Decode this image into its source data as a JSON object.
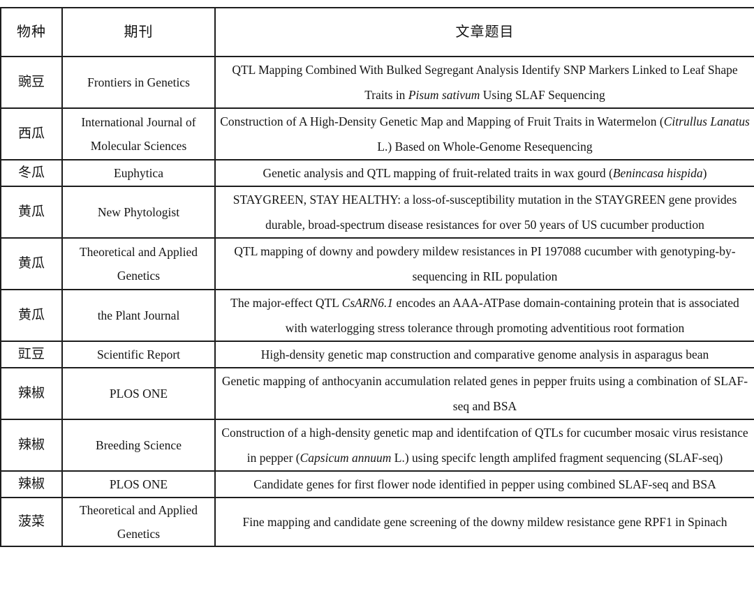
{
  "colors": {
    "background": "#ffffff",
    "border": "#1d1d1d",
    "text": "#141414"
  },
  "table": {
    "headers": [
      "物种",
      "期刊",
      "文章题目"
    ],
    "rows": [
      {
        "species": "豌豆",
        "journal": "Frontiers in Genetics",
        "title": [
          {
            "t": "QTL Mapping Combined With Bulked Segregant Analysis Identify SNP Markers Linked to Leaf Shape Traits in "
          },
          {
            "t": "Pisum sativum",
            "i": true
          },
          {
            "t": " Using SLAF Sequencing"
          }
        ]
      },
      {
        "species": "西瓜",
        "journal": "International Journal of Molecular Sciences",
        "title": [
          {
            "t": "Construction of A High-Density Genetic Map and Mapping of Fruit Traits in Watermelon ("
          },
          {
            "t": "Citrullus Lanatus",
            "i": true
          },
          {
            "t": " L.) Based on Whole-Genome Resequencing"
          }
        ]
      },
      {
        "species": "冬瓜",
        "journal": "Euphytica",
        "title": [
          {
            "t": "Genetic analysis and QTL mapping of fruit-related traits in wax gourd ("
          },
          {
            "t": "Benincasa hispida",
            "i": true
          },
          {
            "t": ")"
          }
        ]
      },
      {
        "species": "黄瓜",
        "journal": "New Phytologist",
        "title": [
          {
            "t": "STAYGREEN, STAY HEALTHY: a loss-of-susceptibility mutation in the STAYGREEN gene provides durable, broad-spectrum disease resistances for over 50 years of US cucumber production"
          }
        ]
      },
      {
        "species": "黄瓜",
        "journal": "Theoretical and Applied Genetics",
        "title": [
          {
            "t": "QTL mapping of downy and powdery mildew resistances in PI 197088 cucumber with genotyping-by-sequencing in RIL population"
          }
        ]
      },
      {
        "species": "黄瓜",
        "journal": "the Plant Journal",
        "title": [
          {
            "t": "The major-effect QTL "
          },
          {
            "t": "CsARN6.1",
            "i": true
          },
          {
            "t": " encodes an AAA-ATPase domain-containing protein that is associated with waterlogging stress tolerance through promoting adventitious root formation"
          }
        ]
      },
      {
        "species": "豇豆",
        "journal": "Scientific Report",
        "title": [
          {
            "t": "High-density genetic map construction and comparative genome analysis in asparagus bean"
          }
        ]
      },
      {
        "species": "辣椒",
        "journal": "PLOS ONE",
        "title": [
          {
            "t": "Genetic mapping of anthocyanin accumulation related genes in pepper fruits using a combination of SLAF-seq and BSA"
          }
        ]
      },
      {
        "species": "辣椒",
        "journal": "Breeding Science",
        "title": [
          {
            "t": "Construction of a high-density genetic map and identifcation of QTLs for cucumber mosaic virus resistance in pepper ("
          },
          {
            "t": "Capsicum annuum",
            "i": true
          },
          {
            "t": " L.) using specifc length amplifed fragment sequencing (SLAF-seq)"
          }
        ]
      },
      {
        "species": "辣椒",
        "journal": "PLOS ONE",
        "title": [
          {
            "t": "Candidate genes for first flower node identified in pepper using combined SLAF-seq and BSA"
          }
        ]
      },
      {
        "species": "菠菜",
        "journal": "Theoretical and Applied Genetics",
        "title": [
          {
            "t": "Fine mapping and candidate gene screening of the downy mildew resistance gene RPF1 in Spinach"
          }
        ]
      }
    ]
  }
}
